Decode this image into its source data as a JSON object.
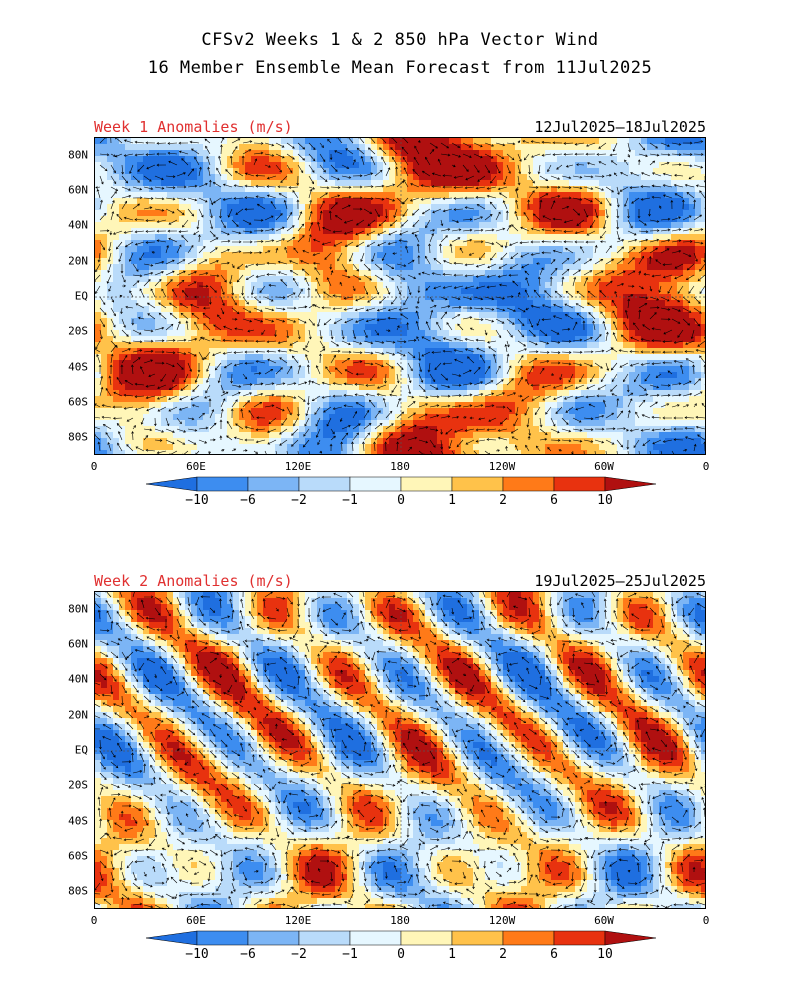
{
  "header": {
    "title_line1": "CFSv2 Weeks 1 & 2 850 hPa Vector Wind",
    "title_line2": "16 Member Ensemble Mean Forecast from 11Jul2025"
  },
  "axes": {
    "y_ticks": [
      "80N",
      "60N",
      "40N",
      "20N",
      "EQ",
      "20S",
      "40S",
      "60S",
      "80S"
    ],
    "x_ticks": [
      "0",
      "60E",
      "120E",
      "180",
      "120W",
      "60W",
      "0"
    ]
  },
  "panels": [
    {
      "label": "Week 1 Anomalies (m/s)",
      "dates": "12Jul2025–18Jul2025",
      "seed": 7
    },
    {
      "label": "Week 2 Anomalies (m/s)",
      "dates": "19Jul2025–25Jul2025",
      "seed": 23
    }
  ],
  "colorbar": {
    "labels": [
      "−10",
      "−6",
      "−2",
      "−1",
      "0",
      "1",
      "2",
      "6",
      "10"
    ],
    "colors": [
      "#1f6fe0",
      "#3d8df0",
      "#7cb5f5",
      "#b9dbfa",
      "#e6f7ff",
      "#fff6b8",
      "#ffc24a",
      "#ff7a18",
      "#e8320f",
      "#b01010"
    ]
  }
}
